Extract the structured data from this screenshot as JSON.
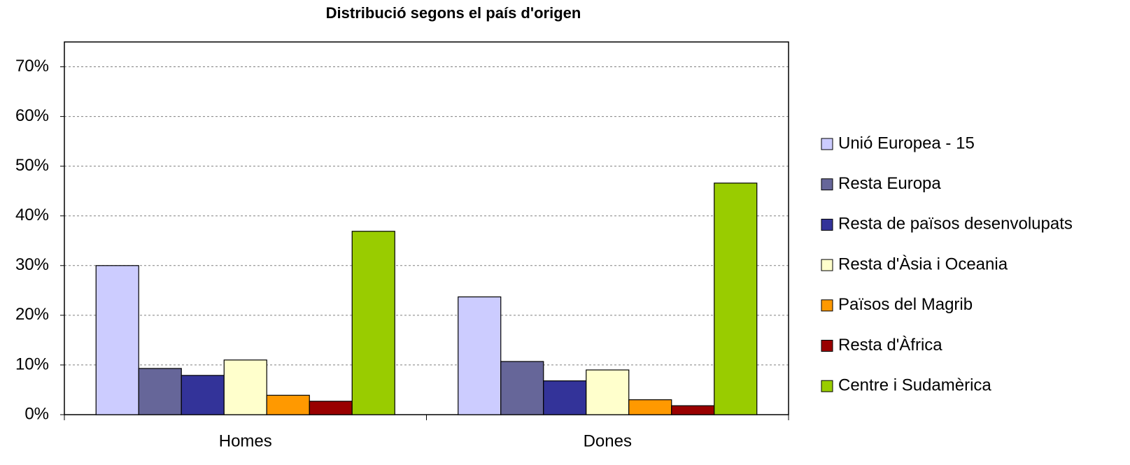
{
  "chart_data": {
    "type": "bar",
    "title": "Distribució segons el país d'origen",
    "categories": [
      "Homes",
      "Dones"
    ],
    "series": [
      {
        "name": "Unió Europea - 15",
        "color": "#ccccff",
        "values": [
          30.0,
          23.7
        ]
      },
      {
        "name": "Resta Europa",
        "color": "#666699",
        "values": [
          9.3,
          10.7
        ]
      },
      {
        "name": "Resta de països desenvolupats",
        "color": "#333399",
        "values": [
          7.9,
          6.8
        ]
      },
      {
        "name": "Resta d'Àsia i Oceania",
        "color": "#ffffcc",
        "values": [
          11.0,
          9.0
        ]
      },
      {
        "name": "Països del Magrib",
        "color": "#ff9900",
        "values": [
          3.9,
          3.0
        ]
      },
      {
        "name": "Resta d'Àfrica",
        "color": "#990000",
        "values": [
          2.7,
          1.8
        ]
      },
      {
        "name": "Centre i Sudamèrica",
        "color": "#99cc00",
        "values": [
          36.9,
          46.6
        ]
      }
    ],
    "ylim": [
      0,
      75
    ],
    "yticks": [
      {
        "value": 0,
        "label": "0%"
      },
      {
        "value": 10,
        "label": "10%"
      },
      {
        "value": 20,
        "label": "20%"
      },
      {
        "value": 30,
        "label": "30%"
      },
      {
        "value": 40,
        "label": "40%"
      },
      {
        "value": 50,
        "label": "50%"
      },
      {
        "value": 60,
        "label": "60%"
      },
      {
        "value": 70,
        "label": "70%"
      }
    ],
    "grid": true,
    "legend": "right"
  }
}
